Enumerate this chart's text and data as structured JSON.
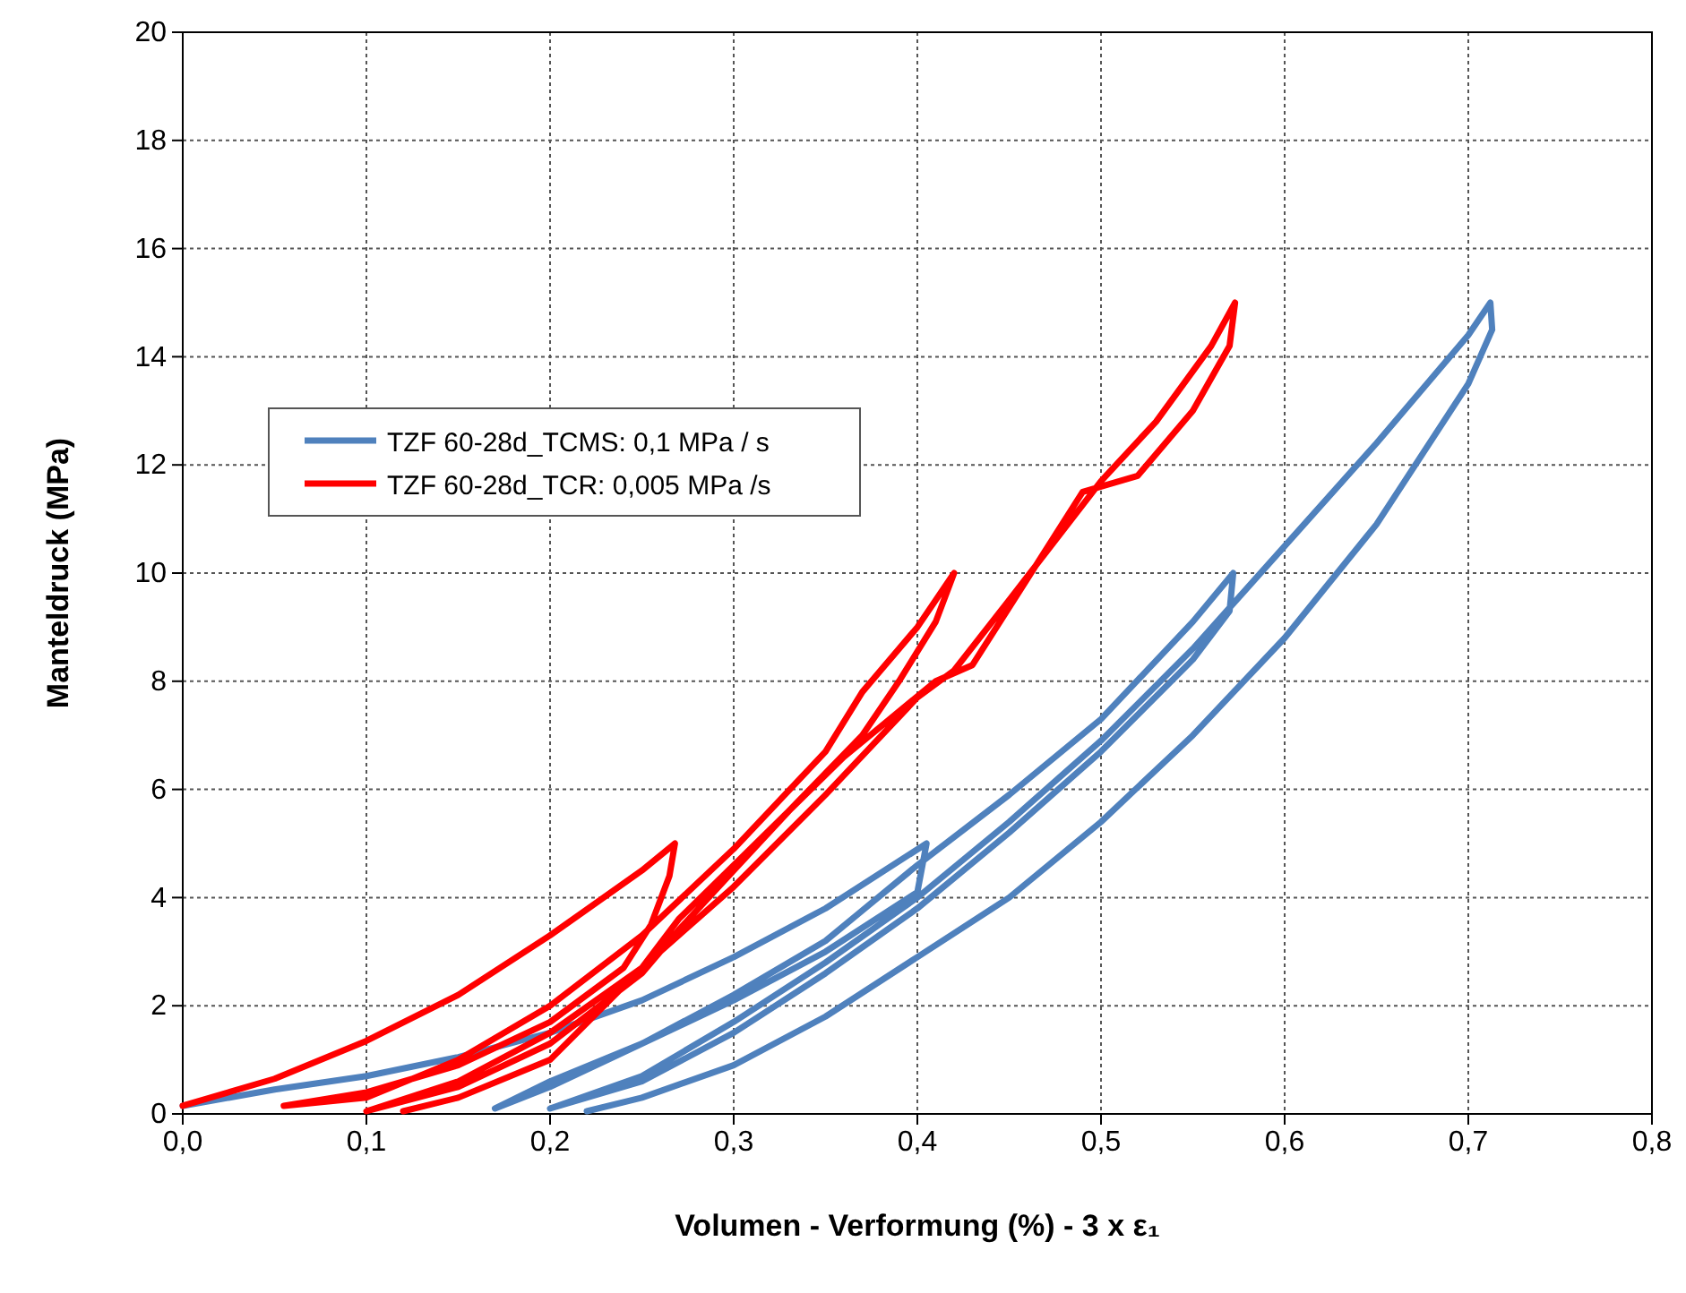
{
  "chart_data": {
    "type": "line",
    "xlabel": "Volumen - Verformung (%)  - 3 x ε₁",
    "ylabel": "Manteldruck (MPa)",
    "xlim": [
      0,
      0.8
    ],
    "xticks": [
      {
        "value": 0,
        "label": "0,0"
      },
      {
        "value": 0.1,
        "label": "0,1"
      },
      {
        "value": 0.2,
        "label": "0,2"
      },
      {
        "value": 0.3,
        "label": "0,3"
      },
      {
        "value": 0.4,
        "label": "0,4"
      },
      {
        "value": 0.5,
        "label": "0,5"
      },
      {
        "value": 0.6,
        "label": "0,6"
      },
      {
        "value": 0.7,
        "label": "0,7"
      },
      {
        "value": 0.8,
        "label": "0,8"
      }
    ],
    "ylim": [
      0,
      20
    ],
    "yticks": [
      0,
      2,
      4,
      6,
      8,
      10,
      12,
      14,
      16,
      18,
      20
    ],
    "grid": true,
    "legend": "top left",
    "marker": "none",
    "line_style": "solid",
    "series": [
      {
        "name": "TZF 60-28d_TCMS:  0,1 MPa / s",
        "color": "#4f81bd",
        "x": [
          0,
          0.05,
          0.1,
          0.15,
          0.2,
          0.25,
          0.3,
          0.35,
          0.405,
          0.4,
          0.35,
          0.3,
          0.25,
          0.2,
          0.17,
          0.2,
          0.25,
          0.3,
          0.35,
          0.4,
          0.45,
          0.5,
          0.55,
          0.572,
          0.57,
          0.55,
          0.5,
          0.45,
          0.4,
          0.35,
          0.3,
          0.25,
          0.2,
          0.25,
          0.3,
          0.35,
          0.4,
          0.45,
          0.5,
          0.55,
          0.6,
          0.65,
          0.7,
          0.712,
          0.713,
          0.7,
          0.65,
          0.6,
          0.55,
          0.5,
          0.45,
          0.4,
          0.35,
          0.3,
          0.25,
          0.22
        ],
        "values": [
          0.15,
          0.45,
          0.7,
          1.05,
          1.5,
          2.1,
          2.9,
          3.8,
          5.0,
          4.1,
          3.0,
          2.1,
          1.3,
          0.6,
          0.1,
          0.5,
          1.3,
          2.2,
          3.2,
          4.6,
          5.9,
          7.3,
          9.1,
          10.0,
          9.3,
          8.4,
          6.7,
          5.2,
          3.8,
          2.6,
          1.5,
          0.6,
          0.1,
          0.7,
          1.7,
          2.8,
          4.0,
          5.4,
          6.9,
          8.6,
          10.5,
          12.4,
          14.4,
          15.0,
          14.5,
          13.5,
          10.9,
          8.8,
          7.0,
          5.4,
          4.0,
          2.9,
          1.8,
          0.9,
          0.3,
          0.05
        ]
      },
      {
        "name": "TZF 60-28d_TCR: 0,005 MPa /s",
        "color": "#ff0000",
        "x": [
          0,
          0.05,
          0.1,
          0.15,
          0.2,
          0.25,
          0.268,
          0.265,
          0.255,
          0.24,
          0.2,
          0.15,
          0.1,
          0.055,
          0.1,
          0.15,
          0.2,
          0.25,
          0.3,
          0.35,
          0.37,
          0.4,
          0.42,
          0.41,
          0.39,
          0.37,
          0.33,
          0.3,
          0.27,
          0.25,
          0.2,
          0.15,
          0.1,
          0.15,
          0.2,
          0.25,
          0.3,
          0.35,
          0.4,
          0.42,
          0.45,
          0.5,
          0.53,
          0.56,
          0.573,
          0.57,
          0.55,
          0.52,
          0.49,
          0.46,
          0.43,
          0.41,
          0.36,
          0.3,
          0.27,
          0.25,
          0.2,
          0.15,
          0.12
        ],
        "values": [
          0.15,
          0.65,
          1.35,
          2.2,
          3.3,
          4.5,
          5.0,
          4.4,
          3.5,
          2.7,
          1.7,
          0.9,
          0.4,
          0.15,
          0.3,
          1.0,
          2.0,
          3.3,
          4.9,
          6.7,
          7.8,
          9.0,
          10.0,
          9.1,
          8.0,
          7.0,
          5.6,
          4.5,
          3.4,
          2.6,
          1.3,
          0.5,
          0.05,
          0.6,
          1.5,
          2.7,
          4.2,
          5.9,
          7.7,
          8.2,
          9.5,
          11.7,
          12.8,
          14.2,
          15.0,
          14.2,
          13.0,
          11.8,
          11.5,
          9.9,
          8.3,
          8.0,
          6.6,
          4.6,
          3.6,
          2.7,
          1.0,
          0.3,
          0.05
        ]
      }
    ]
  }
}
